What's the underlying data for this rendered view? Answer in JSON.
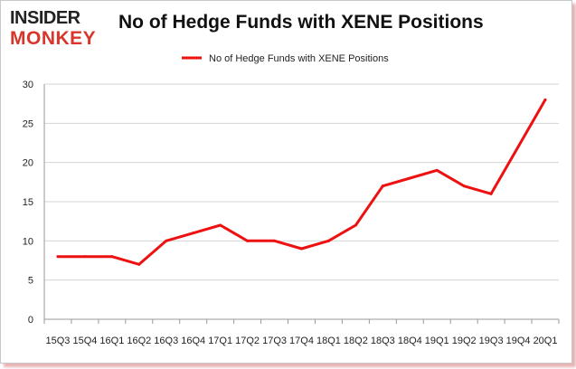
{
  "brand": {
    "line1": "INSIDER",
    "line2": "MONKEY",
    "line1_color": "#222222",
    "line2_color": "#d9362b"
  },
  "chart_data": {
    "type": "line",
    "title": "No of Hedge Funds with XENE Positions",
    "categories": [
      "15Q3",
      "15Q4",
      "16Q1",
      "16Q2",
      "16Q3",
      "16Q4",
      "17Q1",
      "17Q2",
      "17Q3",
      "17Q4",
      "18Q1",
      "18Q2",
      "18Q3",
      "18Q4",
      "19Q1",
      "19Q2",
      "19Q3",
      "19Q4",
      "20Q1"
    ],
    "series": [
      {
        "name": "No of Hedge Funds with XENE  Positions",
        "color": "#ee1111",
        "values": [
          8,
          8,
          8,
          7,
          10,
          11,
          12,
          10,
          10,
          9,
          10,
          12,
          17,
          18,
          19,
          17,
          16,
          22,
          28
        ]
      }
    ],
    "ylim": [
      0,
      30
    ],
    "yticks": [
      0,
      5,
      10,
      15,
      20,
      25,
      30
    ],
    "grid": "horizontal",
    "legend": "top-center"
  }
}
